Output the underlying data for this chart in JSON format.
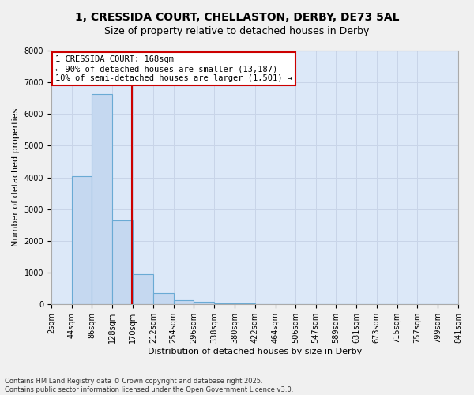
{
  "title1": "1, CRESSIDA COURT, CHELLASTON, DERBY, DE73 5AL",
  "title2": "Size of property relative to detached houses in Derby",
  "xlabel": "Distribution of detached houses by size in Derby",
  "ylabel": "Number of detached properties",
  "bin_edges": [
    2,
    44,
    86,
    128,
    170,
    212,
    254,
    296,
    338,
    380,
    422,
    464,
    506,
    547,
    589,
    631,
    673,
    715,
    757,
    799,
    841
  ],
  "bar_heights": [
    5,
    4030,
    6620,
    2650,
    950,
    350,
    120,
    80,
    40,
    20,
    10,
    5,
    3,
    2,
    2,
    1,
    1,
    1,
    0,
    0
  ],
  "bar_color": "#c5d8f0",
  "bar_edge_color": "#6aaad4",
  "vline_x": 168,
  "vline_color": "#cc0000",
  "annotation_text": "1 CRESSIDA COURT: 168sqm\n← 90% of detached houses are smaller (13,187)\n10% of semi-detached houses are larger (1,501) →",
  "annotation_box_color": "#ffffff",
  "annotation_box_edge_color": "#cc0000",
  "ylim": [
    0,
    8000
  ],
  "yticks": [
    0,
    1000,
    2000,
    3000,
    4000,
    5000,
    6000,
    7000,
    8000
  ],
  "grid_color": "#c8d4e8",
  "bg_color": "#dce8f8",
  "fig_color": "#f0f0f0",
  "footer": "Contains HM Land Registry data © Crown copyright and database right 2025.\nContains public sector information licensed under the Open Government Licence v3.0.",
  "title_fontsize": 10,
  "subtitle_fontsize": 9,
  "tick_label_fontsize": 7,
  "ylabel_fontsize": 8,
  "xlabel_fontsize": 8,
  "annotation_fontsize": 7.5
}
